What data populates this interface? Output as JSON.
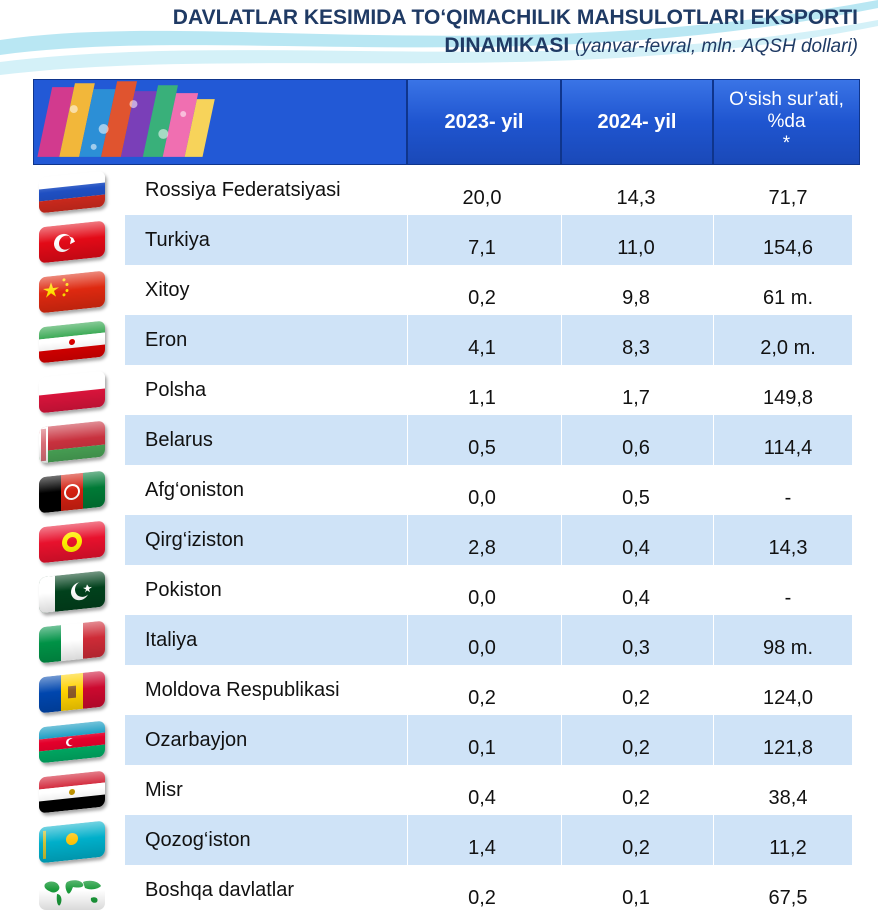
{
  "title": {
    "line1": "DAVLATLAR KESIMIDA TO‘QIMACHILIK MAHSULOTLARI EKSPORTI",
    "line2": "DINAMIKASI",
    "subtitle": "(yanvar-fevral, mln. AQSH dollari)"
  },
  "header": {
    "col1": "2023- yil",
    "col2": "2024- yil",
    "col3_line1": "O‘sish sur’ati,",
    "col3_line2": "%da",
    "col3_line3": "*"
  },
  "rows": [
    {
      "country": "Rossiya Federatsiyasi",
      "flag": "russia-flag",
      "y2023": "20,0",
      "y2024": "14,3",
      "growth": "71,7"
    },
    {
      "country": "Turkiya",
      "flag": "turkey-flag",
      "y2023": "7,1",
      "y2024": "11,0",
      "growth": "154,6"
    },
    {
      "country": "Xitoy",
      "flag": "china-flag",
      "y2023": "0,2",
      "y2024": "9,8",
      "growth": "61 m."
    },
    {
      "country": "Eron",
      "flag": "iran-flag",
      "y2023": "4,1",
      "y2024": "8,3",
      "growth": "2,0 m."
    },
    {
      "country": "Polsha",
      "flag": "poland-flag",
      "y2023": "1,1",
      "y2024": "1,7",
      "growth": "149,8"
    },
    {
      "country": "Belarus",
      "flag": "belarus-flag",
      "y2023": "0,5",
      "y2024": "0,6",
      "growth": "114,4"
    },
    {
      "country": "Afg‘oniston",
      "flag": "afghanistan-flag",
      "y2023": "0,0",
      "y2024": "0,5",
      "growth": "-"
    },
    {
      "country": "Qirg‘iziston",
      "flag": "kyrgyzstan-flag",
      "y2023": "2,8",
      "y2024": "0,4",
      "growth": "14,3"
    },
    {
      "country": "Pokiston",
      "flag": "pakistan-flag",
      "y2023": "0,0",
      "y2024": "0,4",
      "growth": "-"
    },
    {
      "country": "Italiya",
      "flag": "italy-flag",
      "y2023": "0,0",
      "y2024": "0,3",
      "growth": "98 m."
    },
    {
      "country": "Moldova Respublikasi",
      "flag": "moldova-flag",
      "y2023": "0,2",
      "y2024": "0,2",
      "growth": "124,0"
    },
    {
      "country": "Ozarbayjon",
      "flag": "azerbaijan-flag",
      "y2023": "0,1",
      "y2024": "0,2",
      "growth": "121,8"
    },
    {
      "country": "Misr",
      "flag": "egypt-flag",
      "y2023": "0,4",
      "y2024": "0,2",
      "growth": "38,4"
    },
    {
      "country": "Qozog‘iston",
      "flag": "kazakhstan-flag",
      "y2023": "1,4",
      "y2024": "0,2",
      "growth": "11,2"
    },
    {
      "country": "Boshqa davlatlar",
      "flag": "world-map-icon",
      "y2023": "0,2",
      "y2024": "0,1",
      "growth": "67,5"
    }
  ],
  "colors": {
    "title": "#1f3a64",
    "header_blue": "#1f55d0",
    "row_band": "#cfe3f7"
  }
}
